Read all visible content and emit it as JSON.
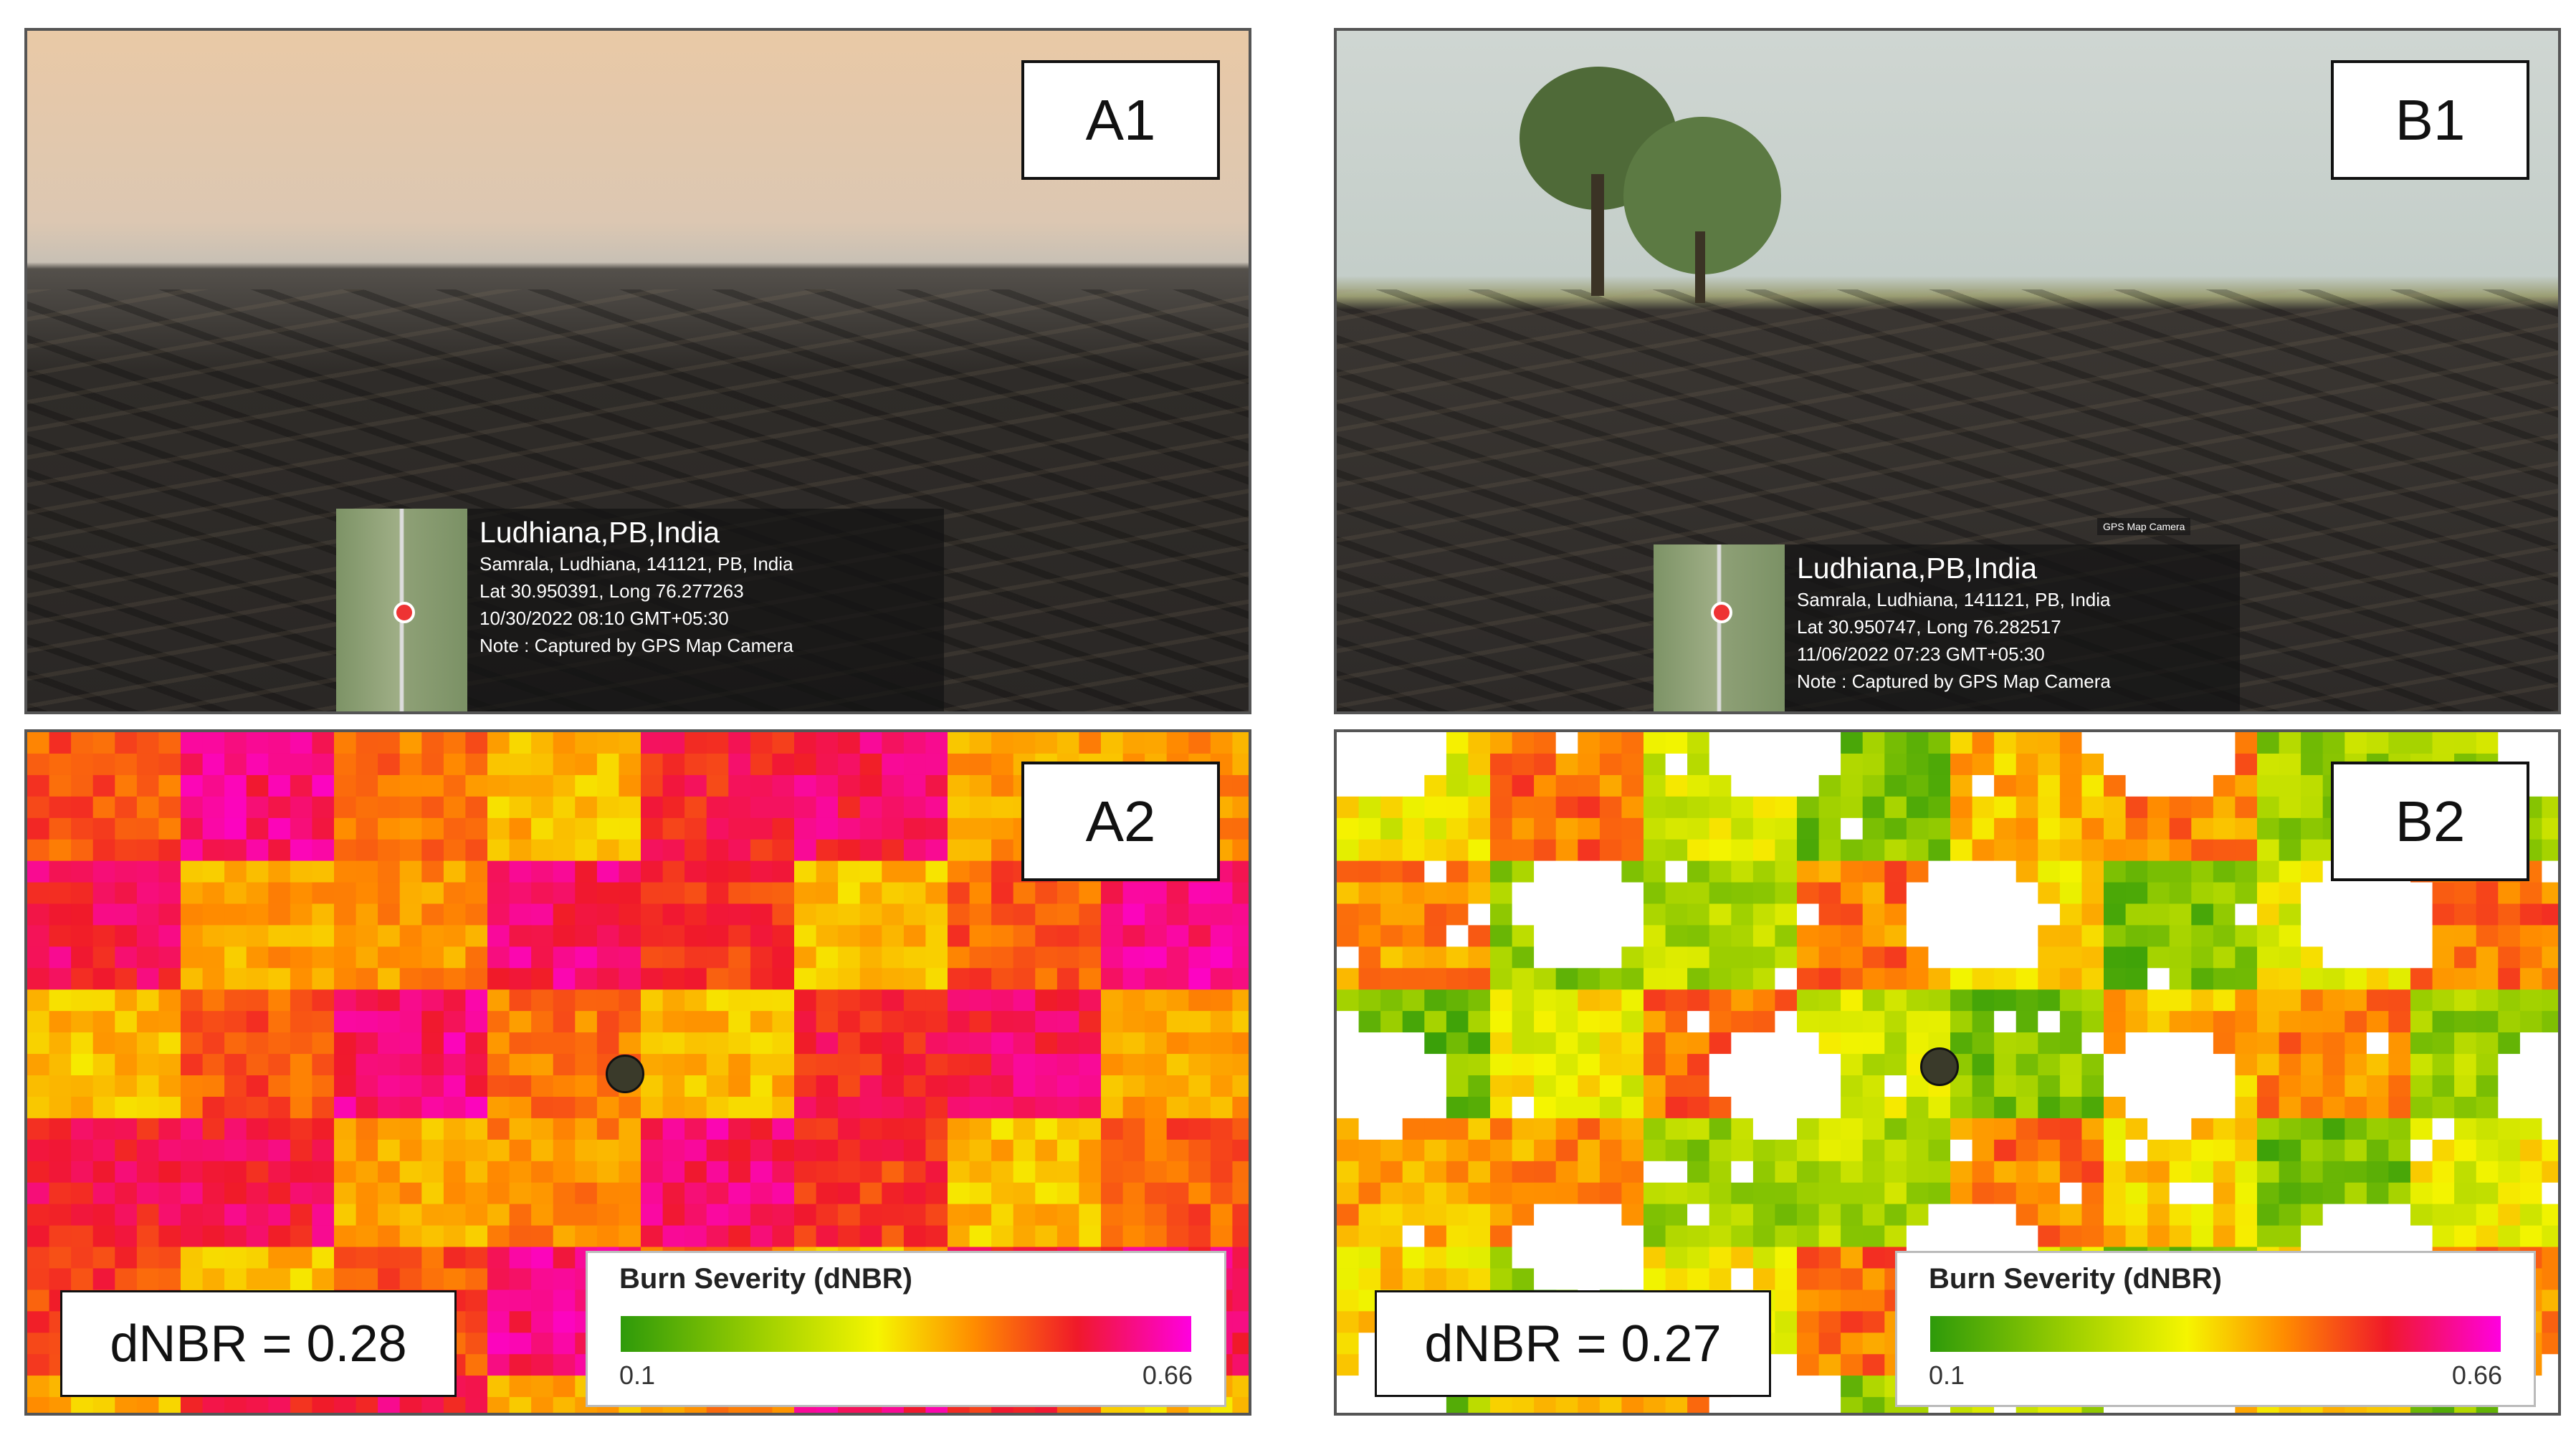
{
  "photos": [
    {
      "label": "A1",
      "gps": {
        "place": "Ludhiana,PB,India",
        "address": "Samrala, Ludhiana, 141121, PB, India",
        "coords": "Lat 30.950391, Long 76.277263",
        "datetime": "10/30/2022 08:10 GMT+05:30",
        "note": "Note : Captured by GPS Map Camera"
      }
    },
    {
      "label": "B1",
      "logo": "GPS Map Camera",
      "gps": {
        "place": "Ludhiana,PB,India",
        "address": "Samrala, Ludhiana, 141121, PB, India",
        "coords": "Lat 30.950747, Long 76.282517",
        "datetime": "11/06/2022 07:23 GMT+05:30",
        "note": "Note : Captured by GPS Map Camera"
      }
    }
  ],
  "maps": [
    {
      "label": "A2",
      "dnbr": "dNBR = 0.28",
      "legend": {
        "title": "Burn Severity (dNBR)",
        "min": "0.1",
        "max": "0.66"
      }
    },
    {
      "label": "B2",
      "dnbr": "dNBR = 0.27",
      "legend": {
        "title": "Burn Severity (dNBR)",
        "min": "0.1",
        "max": "0.66"
      }
    }
  ]
}
